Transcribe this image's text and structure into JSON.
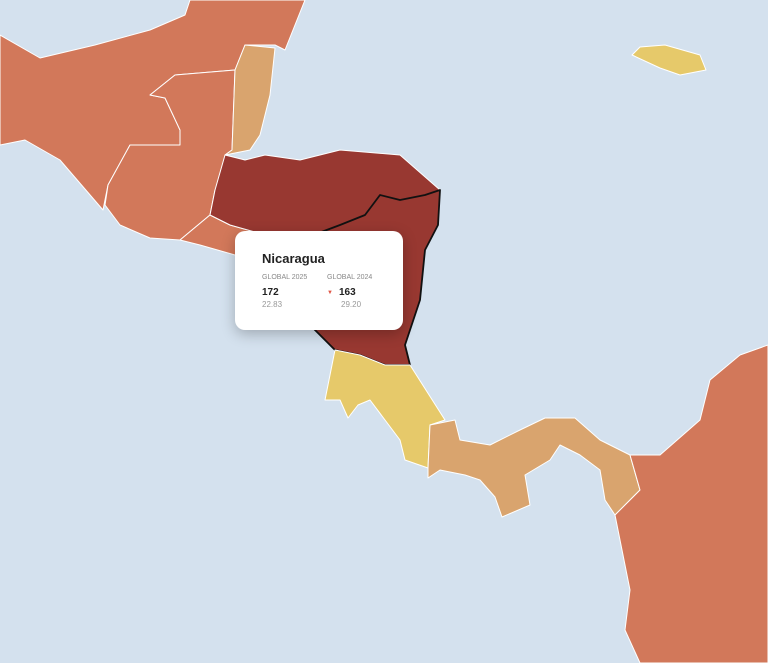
{
  "colors": {
    "sea": "#d4e1ee",
    "orange": "#d2785a",
    "tan": "#d9a46e",
    "yellow": "#e6c96a",
    "darkred": "#983831"
  },
  "countries": [
    {
      "name": "Mexico",
      "color": "orange"
    },
    {
      "name": "Guatemala",
      "color": "orange"
    },
    {
      "name": "Belize",
      "color": "tan"
    },
    {
      "name": "El Salvador",
      "color": "orange"
    },
    {
      "name": "Honduras",
      "color": "darkred"
    },
    {
      "name": "Nicaragua",
      "color": "darkred",
      "highlighted": true
    },
    {
      "name": "Costa Rica",
      "color": "yellow"
    },
    {
      "name": "Panama",
      "color": "tan"
    },
    {
      "name": "Colombia",
      "color": "orange"
    },
    {
      "name": "Jamaica",
      "color": "yellow"
    }
  ],
  "tooltip": {
    "country": "Nicaragua",
    "col1": {
      "label": "GLOBAL 2025",
      "rank": "172",
      "score": "22.83"
    },
    "col2": {
      "label": "GLOBAL 2024",
      "rank": "163",
      "score": "29.20",
      "trend": "down"
    }
  }
}
